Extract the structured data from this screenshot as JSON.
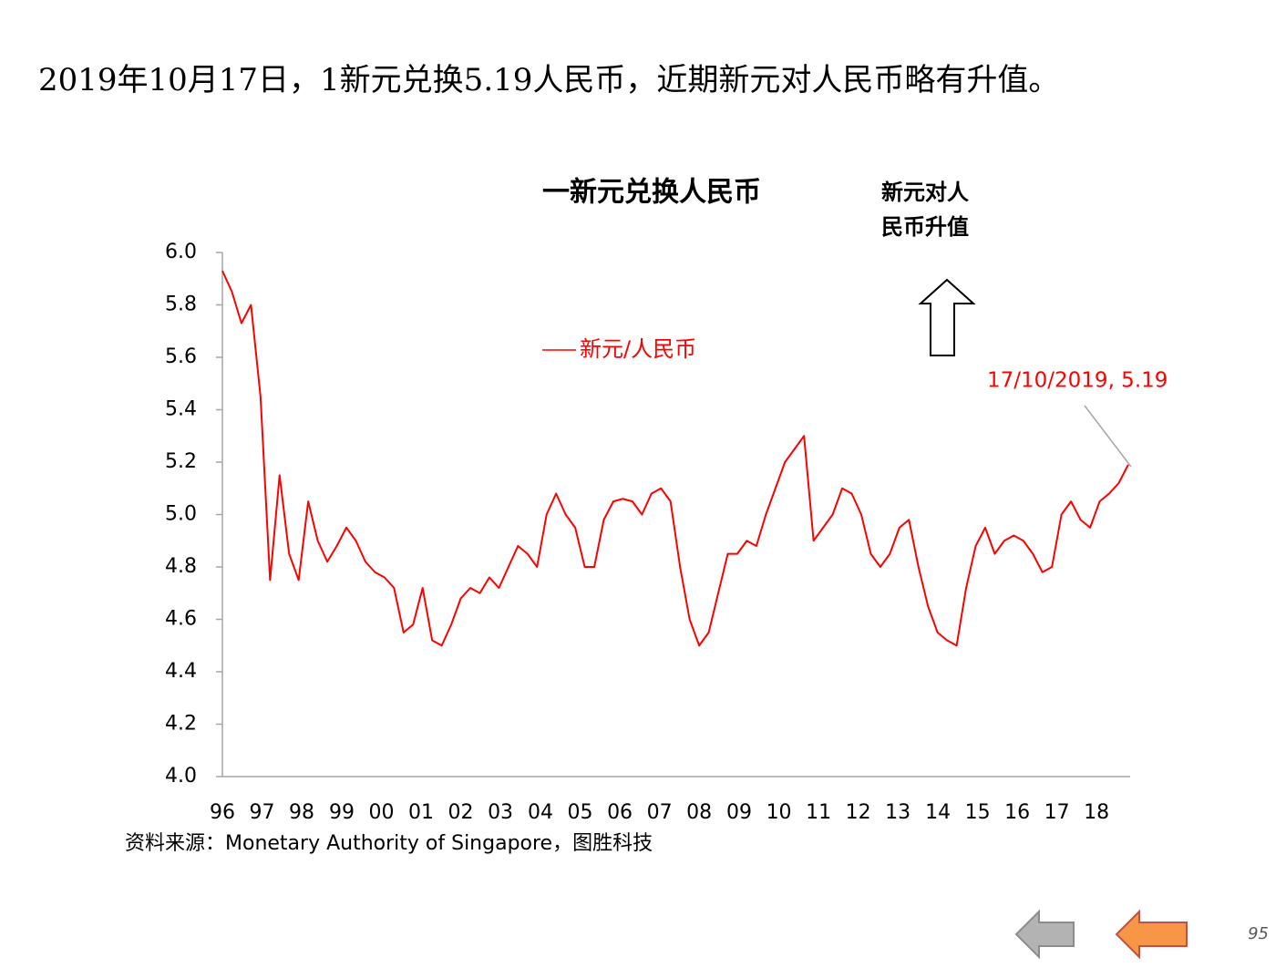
{
  "page_title": "2019年10月17日，1新元兑换5.19人民币，近期新元对人民币略有升值。",
  "chart_data": {
    "type": "line",
    "title": "一新元兑换人民币",
    "annotation_lines": [
      "新元对人",
      "民币升值"
    ],
    "point_label": "17/10/2019, 5.19",
    "source": "资料来源：Monetary  Authority of Singapore，图胜科技",
    "x": [
      1996,
      1996.25,
      1996.5,
      1996.75,
      1997,
      1997.25,
      1997.5,
      1997.75,
      1998,
      1998.25,
      1998.5,
      1998.75,
      1999,
      1999.25,
      1999.5,
      1999.75,
      2000,
      2000.25,
      2000.5,
      2000.75,
      2001,
      2001.25,
      2001.5,
      2001.75,
      2002,
      2002.25,
      2002.5,
      2002.75,
      2003,
      2003.25,
      2003.5,
      2003.75,
      2004,
      2004.25,
      2004.5,
      2004.75,
      2005,
      2005.25,
      2005.5,
      2005.75,
      2006,
      2006.25,
      2006.5,
      2006.75,
      2007,
      2007.25,
      2007.5,
      2007.75,
      2008,
      2008.25,
      2008.5,
      2008.75,
      2009,
      2009.25,
      2009.5,
      2009.75,
      2010,
      2010.25,
      2010.5,
      2010.75,
      2011,
      2011.25,
      2011.5,
      2011.75,
      2012,
      2012.25,
      2012.5,
      2012.75,
      2013,
      2013.25,
      2013.5,
      2013.75,
      2014,
      2014.25,
      2014.5,
      2014.75,
      2015,
      2015.25,
      2015.5,
      2015.75,
      2016,
      2016.25,
      2016.5,
      2016.75,
      2017,
      2017.25,
      2017.5,
      2017.75,
      2018,
      2018.25,
      2018.5,
      2018.75,
      2019,
      2019.25,
      2019.5,
      2019.75
    ],
    "series": [
      {
        "name": "新元/人民币",
        "color": "#ff0000",
        "values": [
          5.93,
          5.85,
          5.73,
          5.8,
          5.45,
          4.75,
          5.15,
          4.85,
          4.75,
          5.05,
          4.9,
          4.82,
          4.88,
          4.95,
          4.9,
          4.82,
          4.78,
          4.76,
          4.72,
          4.55,
          4.58,
          4.72,
          4.52,
          4.5,
          4.58,
          4.68,
          4.72,
          4.7,
          4.76,
          4.72,
          4.8,
          4.88,
          4.85,
          4.8,
          5.0,
          5.08,
          5.0,
          4.95,
          4.8,
          4.8,
          4.98,
          5.05,
          5.06,
          5.05,
          5.0,
          5.08,
          5.1,
          5.05,
          4.8,
          4.6,
          4.5,
          4.55,
          4.7,
          4.85,
          4.85,
          4.9,
          4.88,
          5.0,
          5.1,
          5.2,
          5.25,
          5.3,
          4.9,
          4.95,
          5.0,
          5.1,
          5.08,
          5.0,
          4.85,
          4.8,
          4.85,
          4.95,
          4.98,
          4.8,
          4.65,
          4.55,
          4.52,
          4.5,
          4.72,
          4.88,
          4.95,
          4.85,
          4.9,
          4.92,
          4.9,
          4.85,
          4.78,
          4.8,
          5.0,
          5.05,
          4.98,
          4.95,
          5.05,
          5.08,
          5.12,
          5.19
        ]
      }
    ],
    "xlim": [
      1996,
      2019.8
    ],
    "xticks": [
      {
        "value": 1996,
        "label": "96"
      },
      {
        "value": 1997.04,
        "label": "97"
      },
      {
        "value": 1998.08,
        "label": "98"
      },
      {
        "value": 1999.13,
        "label": "99"
      },
      {
        "value": 2000.17,
        "label": "00"
      },
      {
        "value": 2001.21,
        "label": "01"
      },
      {
        "value": 2002.25,
        "label": "02"
      },
      {
        "value": 2003.29,
        "label": "03"
      },
      {
        "value": 2004.34,
        "label": "04"
      },
      {
        "value": 2005.38,
        "label": "05"
      },
      {
        "value": 2006.42,
        "label": "06"
      },
      {
        "value": 2007.46,
        "label": "07"
      },
      {
        "value": 2008.5,
        "label": "08"
      },
      {
        "value": 2009.55,
        "label": "09"
      },
      {
        "value": 2010.59,
        "label": "10"
      },
      {
        "value": 2011.63,
        "label": "11"
      },
      {
        "value": 2012.67,
        "label": "12"
      },
      {
        "value": 2013.71,
        "label": "13"
      },
      {
        "value": 2014.76,
        "label": "14"
      },
      {
        "value": 2015.8,
        "label": "15"
      },
      {
        "value": 2016.84,
        "label": "16"
      },
      {
        "value": 2017.88,
        "label": "17"
      },
      {
        "value": 2018.92,
        "label": "18"
      }
    ],
    "ylim": [
      4,
      6
    ],
    "yticks": [
      {
        "value": 4,
        "label": "4.0"
      },
      4.2,
      4.4,
      4.6,
      4.8,
      {
        "value": 5,
        "label": "5.0"
      },
      5.2,
      5.4,
      5.6,
      5.8,
      {
        "value": 6,
        "label": "6.0"
      }
    ],
    "grid": false
  },
  "page_number": "95"
}
